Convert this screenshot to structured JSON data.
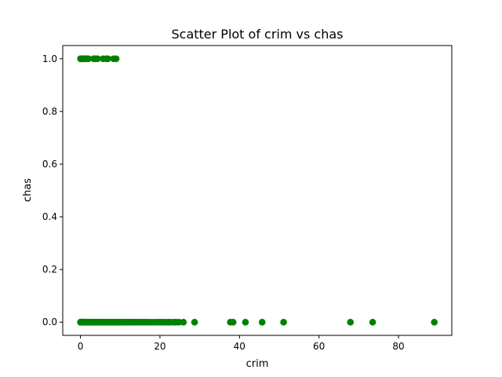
{
  "chart_data": {
    "type": "scatter",
    "title": "Scatter Plot of crim vs chas",
    "xlabel": "crim",
    "ylabel": "chas",
    "xlim": [
      -4.45,
      93.4
    ],
    "ylim": [
      -0.05,
      1.05
    ],
    "x_ticks": [
      0,
      20,
      40,
      60,
      80
    ],
    "y_ticks": [
      0.0,
      0.2,
      0.4,
      0.6,
      0.8,
      1.0
    ],
    "y_tick_labels": [
      "0.0",
      "0.2",
      "0.4",
      "0.6",
      "0.8",
      "1.0"
    ],
    "grid": false,
    "marker_color": "#008000",
    "series": [
      {
        "points": [
          [
            0.01,
            0
          ],
          [
            0.03,
            0
          ],
          [
            0.06,
            0
          ],
          [
            0.09,
            0
          ],
          [
            0.12,
            0
          ],
          [
            0.15,
            0
          ],
          [
            0.2,
            0
          ],
          [
            0.25,
            0
          ],
          [
            0.3,
            0
          ],
          [
            0.35,
            0
          ],
          [
            0.4,
            0
          ],
          [
            0.5,
            0
          ],
          [
            0.6,
            0
          ],
          [
            0.7,
            0
          ],
          [
            0.8,
            0
          ],
          [
            0.9,
            0
          ],
          [
            1.0,
            0
          ],
          [
            1.2,
            0
          ],
          [
            1.4,
            0
          ],
          [
            1.6,
            0
          ],
          [
            1.8,
            0
          ],
          [
            2.0,
            0
          ],
          [
            2.3,
            0
          ],
          [
            2.6,
            0
          ],
          [
            2.9,
            0
          ],
          [
            3.2,
            0
          ],
          [
            3.5,
            0
          ],
          [
            3.8,
            0
          ],
          [
            4.1,
            0
          ],
          [
            4.4,
            0
          ],
          [
            4.8,
            0
          ],
          [
            5.2,
            0
          ],
          [
            5.6,
            0
          ],
          [
            6.0,
            0
          ],
          [
            6.4,
            0
          ],
          [
            6.8,
            0
          ],
          [
            7.2,
            0
          ],
          [
            7.6,
            0
          ],
          [
            8.0,
            0
          ],
          [
            8.4,
            0
          ],
          [
            8.8,
            0
          ],
          [
            9.2,
            0
          ],
          [
            9.6,
            0
          ],
          [
            10.0,
            0
          ],
          [
            10.5,
            0
          ],
          [
            11.0,
            0
          ],
          [
            11.5,
            0
          ],
          [
            12.0,
            0
          ],
          [
            12.5,
            0
          ],
          [
            13.0,
            0
          ],
          [
            13.6,
            0
          ],
          [
            14.2,
            0
          ],
          [
            14.8,
            0
          ],
          [
            15.2,
            0
          ],
          [
            15.9,
            0
          ],
          [
            16.5,
            0
          ],
          [
            17.2,
            0
          ],
          [
            18.0,
            0
          ],
          [
            18.8,
            0
          ],
          [
            19.6,
            0
          ],
          [
            20.1,
            0
          ],
          [
            20.7,
            0
          ],
          [
            21.4,
            0
          ],
          [
            22.1,
            0
          ],
          [
            22.6,
            0
          ],
          [
            23.4,
            0
          ],
          [
            24.0,
            0
          ],
          [
            24.8,
            0
          ],
          [
            25.9,
            0
          ],
          [
            28.7,
            0
          ],
          [
            37.7,
            0
          ],
          [
            38.4,
            0
          ],
          [
            41.5,
            0
          ],
          [
            45.7,
            0
          ],
          [
            51.1,
            0
          ],
          [
            67.9,
            0
          ],
          [
            73.5,
            0
          ],
          [
            89.0,
            0
          ],
          [
            0.02,
            1
          ],
          [
            0.05,
            1
          ],
          [
            0.1,
            1
          ],
          [
            0.15,
            1
          ],
          [
            0.2,
            1
          ],
          [
            0.3,
            1
          ],
          [
            0.4,
            1
          ],
          [
            0.5,
            1
          ],
          [
            0.6,
            1
          ],
          [
            0.8,
            1
          ],
          [
            1.0,
            1
          ],
          [
            1.3,
            1
          ],
          [
            1.6,
            1
          ],
          [
            2.0,
            1
          ],
          [
            3.3,
            1
          ],
          [
            3.5,
            1
          ],
          [
            3.8,
            1
          ],
          [
            4.3,
            1
          ],
          [
            5.7,
            1
          ],
          [
            6.5,
            1
          ],
          [
            6.9,
            1
          ],
          [
            8.3,
            1
          ],
          [
            8.98,
            1
          ]
        ]
      }
    ]
  }
}
